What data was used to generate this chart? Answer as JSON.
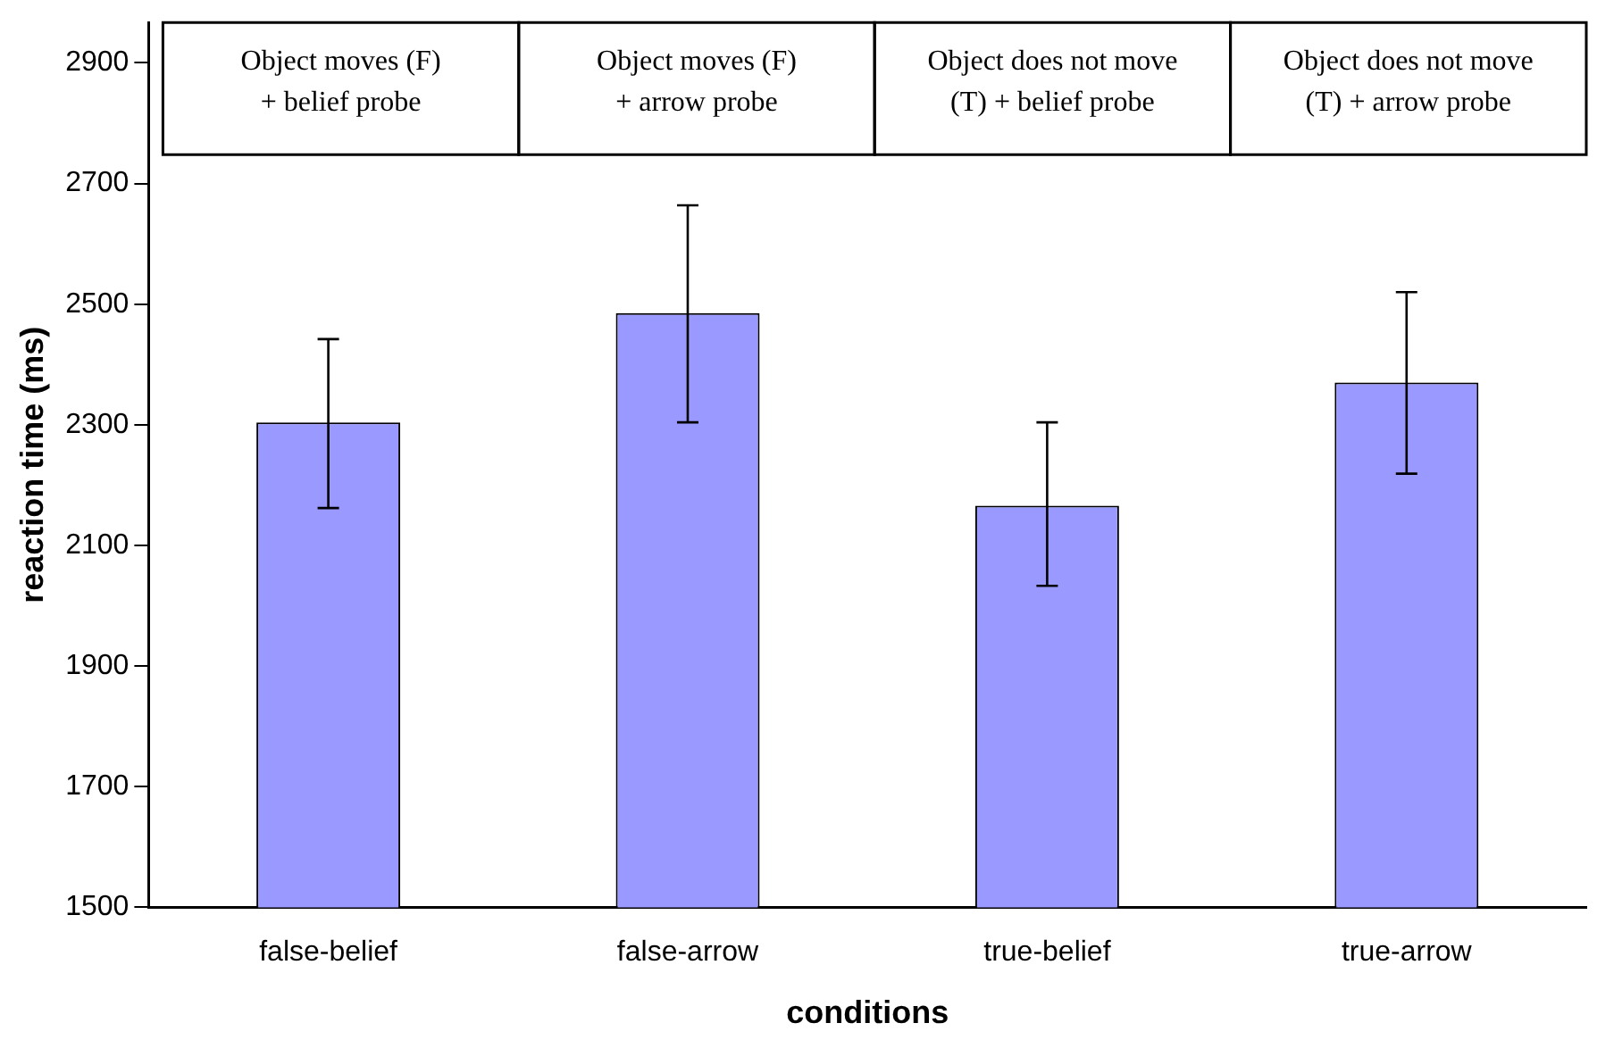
{
  "chart_data": {
    "type": "bar",
    "xlabel": "conditions",
    "ylabel": "reaction time (ms)",
    "categories": [
      "false-belief",
      "false-arrow",
      "true-belief",
      "true-arrow"
    ],
    "values": [
      2304,
      2485,
      2166,
      2370
    ],
    "errors": [
      [
        2162,
        2442
      ],
      [
        2304,
        2664
      ],
      [
        2033,
        2304
      ],
      [
        2219,
        2520
      ]
    ],
    "color": "#9999ff",
    "ylim": [
      1500,
      2967
    ],
    "yticks": [
      1500,
      1700,
      1900,
      2100,
      2300,
      2500,
      2700,
      2900
    ],
    "grid": false,
    "legend": false,
    "annotations": [
      "Object moves (F)\n+ belief probe",
      "Object moves (F)\n+ arrow probe",
      "Object does not move\n(T) + belief probe",
      "Object does not move\n(T) + arrow probe"
    ]
  }
}
